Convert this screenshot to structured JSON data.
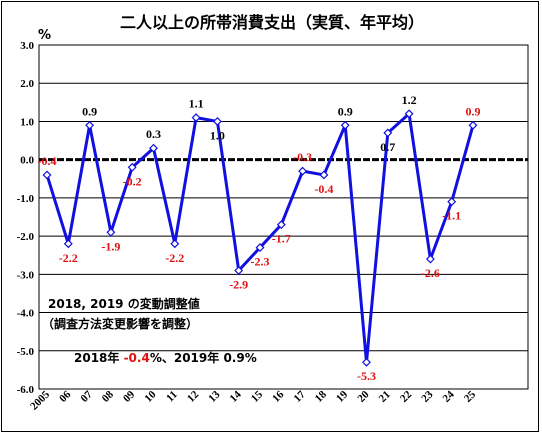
{
  "chart_data": {
    "type": "line",
    "title": "二人以上の所帯消費支出（実質、年平均）",
    "unit_label": "%",
    "x": [
      "2005",
      "06",
      "07",
      "08",
      "09",
      "10",
      "11",
      "12",
      "13",
      "14",
      "15",
      "16",
      "17",
      "18",
      "19",
      "20",
      "21",
      "22",
      "23",
      "24",
      "25"
    ],
    "series": [
      {
        "values": [
          -0.4,
          -2.2,
          0.9,
          -1.9,
          -0.2,
          0.3,
          -2.2,
          1.1,
          1.0,
          -2.9,
          -2.3,
          -1.7,
          -0.3,
          -0.4,
          0.9,
          -5.3,
          0.7,
          1.2,
          -2.6,
          -1.1,
          0.9
        ],
        "color": "#1010e0"
      }
    ],
    "data_labels": [
      {
        "index": 0,
        "text": "-0.4",
        "color": "#e01010"
      },
      {
        "index": 1,
        "text": "-2.2",
        "color": "#e01010"
      },
      {
        "index": 2,
        "text": "0.9",
        "color": "#000000"
      },
      {
        "index": 3,
        "text": "-1.9",
        "color": "#e01010"
      },
      {
        "index": 4,
        "text": "-0.2",
        "color": "#e01010"
      },
      {
        "index": 5,
        "text": "0.3",
        "color": "#000000"
      },
      {
        "index": 6,
        "text": "-2.2",
        "color": "#e01010"
      },
      {
        "index": 7,
        "text": "1.1",
        "color": "#000000"
      },
      {
        "index": 8,
        "text": "1.0",
        "color": "#000000"
      },
      {
        "index": 9,
        "text": "-2.9",
        "color": "#e01010"
      },
      {
        "index": 10,
        "text": "-2.3",
        "color": "#e01010"
      },
      {
        "index": 11,
        "text": "-1.7",
        "color": "#e01010"
      },
      {
        "index": 12,
        "text": "-0.3",
        "color": "#e01010"
      },
      {
        "index": 13,
        "text": "-0.4",
        "color": "#e01010"
      },
      {
        "index": 14,
        "text": "0.9",
        "color": "#000000"
      },
      {
        "index": 15,
        "text": "-5.3",
        "color": "#e01010"
      },
      {
        "index": 16,
        "text": "0.7",
        "color": "#000000"
      },
      {
        "index": 17,
        "text": "1.2",
        "color": "#000000"
      },
      {
        "index": 18,
        "text": "-2.6",
        "color": "#e01010"
      },
      {
        "index": 19,
        "text": "-1.1",
        "color": "#e01010"
      },
      {
        "index": 20,
        "text": "0.9",
        "color": "#e01010"
      }
    ],
    "yticks": [
      "3.0",
      "2.0",
      "1.0",
      "0.0",
      "-1.0",
      "-2.0",
      "-3.0",
      "-4.0",
      "-5.0",
      "-6.0"
    ],
    "ylim": [
      -6,
      3
    ],
    "grid": true,
    "zero_line": "dashed"
  },
  "note": {
    "line1": "2018, 2019 の変動調整値",
    "line2": "（調査方法変更影響を調整）",
    "line3_prefix": "2018年 ",
    "line3_value1": "-0.4",
    "line3_mid": "%、2019年 ",
    "line3_value2": "0.9",
    "line3_suffix": "%",
    "value1_color": "#e01010"
  }
}
